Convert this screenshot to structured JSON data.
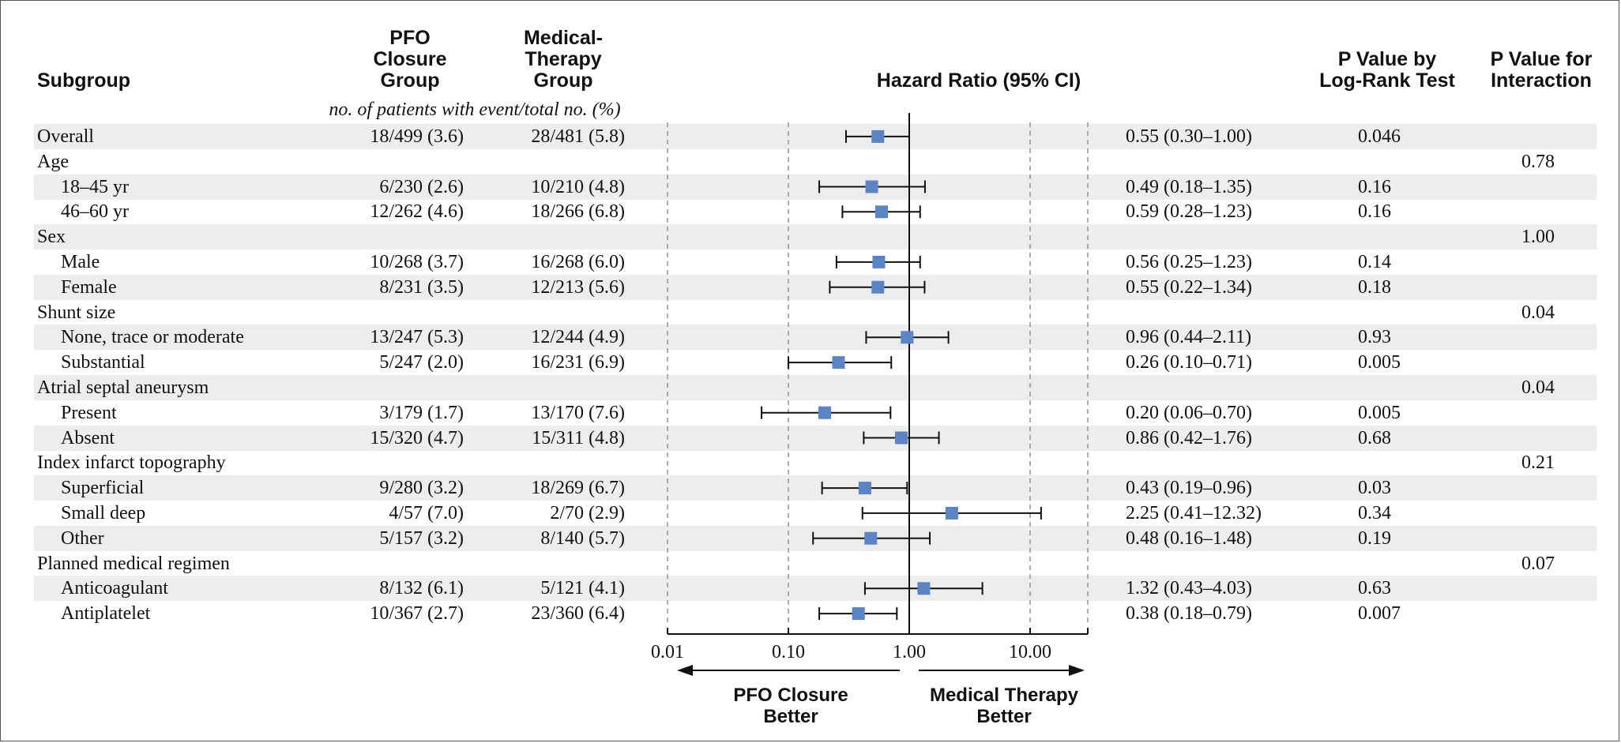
{
  "headers": {
    "subgroup": "Subgroup",
    "pfo": "PFO\nClosure\nGroup",
    "med": "Medical-\nTherapy\nGroup",
    "hr": "Hazard Ratio (95% CI)",
    "p_logrank": "P Value by\nLog-Rank Test",
    "p_interaction": "P Value for\nInteraction"
  },
  "subheader": "no. of patients with event/total no. (%)",
  "colors": {
    "marker": "#5b84c4",
    "shade": "#ededed",
    "line": "#111111",
    "dash": "#9a9a9a"
  },
  "chart_data": {
    "type": "forest",
    "xscale": "log",
    "xlim": [
      0.01,
      30
    ],
    "xticks": [
      0.01,
      0.1,
      1,
      10
    ],
    "xtick_labels": [
      "0.01",
      "0.10",
      "1.00",
      "10.00"
    ],
    "reference": 1,
    "left_label": "PFO Closure\nBetter",
    "right_label": "Medical Therapy\nBetter",
    "rows": [
      {
        "label": "Overall",
        "indent": 0,
        "pfo": "18/499 (3.6)",
        "med": "28/481 (5.8)",
        "hr": 0.55,
        "lo": 0.3,
        "hi": 1.0,
        "ci_text": "0.55 (0.30–1.00)",
        "p": "0.046",
        "p_int": ""
      },
      {
        "label": "Age",
        "indent": 0,
        "pfo": "",
        "med": "",
        "hr": null,
        "lo": null,
        "hi": null,
        "ci_text": "",
        "p": "",
        "p_int": "0.78"
      },
      {
        "label": "18–45 yr",
        "indent": 1,
        "pfo": "6/230 (2.6)",
        "med": "10/210 (4.8)",
        "hr": 0.49,
        "lo": 0.18,
        "hi": 1.35,
        "ci_text": "0.49 (0.18–1.35)",
        "p": "0.16",
        "p_int": ""
      },
      {
        "label": "46–60 yr",
        "indent": 1,
        "pfo": "12/262 (4.6)",
        "med": "18/266 (6.8)",
        "hr": 0.59,
        "lo": 0.28,
        "hi": 1.23,
        "ci_text": "0.59 (0.28–1.23)",
        "p": "0.16",
        "p_int": ""
      },
      {
        "label": "Sex",
        "indent": 0,
        "pfo": "",
        "med": "",
        "hr": null,
        "lo": null,
        "hi": null,
        "ci_text": "",
        "p": "",
        "p_int": "1.00"
      },
      {
        "label": "Male",
        "indent": 1,
        "pfo": "10/268 (3.7)",
        "med": "16/268 (6.0)",
        "hr": 0.56,
        "lo": 0.25,
        "hi": 1.23,
        "ci_text": "0.56 (0.25–1.23)",
        "p": "0.14",
        "p_int": ""
      },
      {
        "label": "Female",
        "indent": 1,
        "pfo": "8/231 (3.5)",
        "med": "12/213 (5.6)",
        "hr": 0.55,
        "lo": 0.22,
        "hi": 1.34,
        "ci_text": "0.55 (0.22–1.34)",
        "p": "0.18",
        "p_int": ""
      },
      {
        "label": "Shunt size",
        "indent": 0,
        "pfo": "",
        "med": "",
        "hr": null,
        "lo": null,
        "hi": null,
        "ci_text": "",
        "p": "",
        "p_int": "0.04"
      },
      {
        "label": "None, trace or moderate",
        "indent": 1,
        "pfo": "13/247 (5.3)",
        "med": "12/244 (4.9)",
        "hr": 0.96,
        "lo": 0.44,
        "hi": 2.11,
        "ci_text": "0.96 (0.44–2.11)",
        "p": "0.93",
        "p_int": ""
      },
      {
        "label": "Substantial",
        "indent": 1,
        "pfo": "5/247 (2.0)",
        "med": "16/231 (6.9)",
        "hr": 0.26,
        "lo": 0.1,
        "hi": 0.71,
        "ci_text": "0.26 (0.10–0.71)",
        "p": "0.005",
        "p_int": ""
      },
      {
        "label": "Atrial septal aneurysm",
        "indent": 0,
        "pfo": "",
        "med": "",
        "hr": null,
        "lo": null,
        "hi": null,
        "ci_text": "",
        "p": "",
        "p_int": "0.04"
      },
      {
        "label": "Present",
        "indent": 1,
        "pfo": "3/179 (1.7)",
        "med": "13/170 (7.6)",
        "hr": 0.2,
        "lo": 0.06,
        "hi": 0.7,
        "ci_text": "0.20 (0.06–0.70)",
        "p": "0.005",
        "p_int": ""
      },
      {
        "label": "Absent",
        "indent": 1,
        "pfo": "15/320 (4.7)",
        "med": "15/311 (4.8)",
        "hr": 0.86,
        "lo": 0.42,
        "hi": 1.76,
        "ci_text": "0.86 (0.42–1.76)",
        "p": "0.68",
        "p_int": ""
      },
      {
        "label": "Index infarct topography",
        "indent": 0,
        "pfo": "",
        "med": "",
        "hr": null,
        "lo": null,
        "hi": null,
        "ci_text": "",
        "p": "",
        "p_int": "0.21"
      },
      {
        "label": "Superficial",
        "indent": 1,
        "pfo": "9/280 (3.2)",
        "med": "18/269 (6.7)",
        "hr": 0.43,
        "lo": 0.19,
        "hi": 0.96,
        "ci_text": "0.43 (0.19–0.96)",
        "p": "0.03",
        "p_int": ""
      },
      {
        "label": "Small deep",
        "indent": 1,
        "pfo": "4/57 (7.0)",
        "med": "2/70 (2.9)",
        "hr": 2.25,
        "lo": 0.41,
        "hi": 12.32,
        "ci_text": "2.25 (0.41–12.32)",
        "p": "0.34",
        "p_int": ""
      },
      {
        "label": "Other",
        "indent": 1,
        "pfo": "5/157 (3.2)",
        "med": "8/140 (5.7)",
        "hr": 0.48,
        "lo": 0.16,
        "hi": 1.48,
        "ci_text": "0.48 (0.16–1.48)",
        "p": "0.19",
        "p_int": ""
      },
      {
        "label": "Planned medical regimen",
        "indent": 0,
        "pfo": "",
        "med": "",
        "hr": null,
        "lo": null,
        "hi": null,
        "ci_text": "",
        "p": "",
        "p_int": "0.07"
      },
      {
        "label": "Anticoagulant",
        "indent": 1,
        "pfo": "8/132 (6.1)",
        "med": "5/121 (4.1)",
        "hr": 1.32,
        "lo": 0.43,
        "hi": 4.03,
        "ci_text": "1.32 (0.43–4.03)",
        "p": "0.63",
        "p_int": ""
      },
      {
        "label": "Antiplatelet",
        "indent": 1,
        "pfo": "10/367 (2.7)",
        "med": "23/360 (6.4)",
        "hr": 0.38,
        "lo": 0.18,
        "hi": 0.79,
        "ci_text": "0.38 (0.18–0.79)",
        "p": "0.007",
        "p_int": ""
      }
    ]
  }
}
